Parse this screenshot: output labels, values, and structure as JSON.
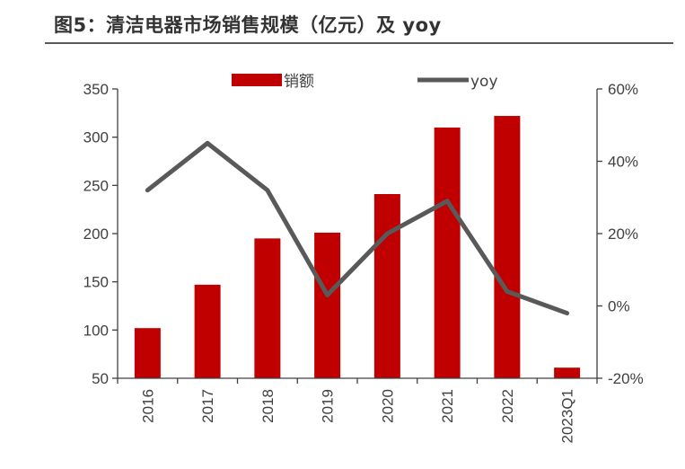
{
  "title": "图5：清洁电器市场销售规模（亿元）及 yoy",
  "colors": {
    "bar": "#c00000",
    "line": "#595959",
    "axis": "#404040"
  },
  "legend": {
    "bar_label": "销额",
    "line_label": "yoy"
  },
  "chart_data": {
    "type": "bar+line",
    "title": "图5：清洁电器市场销售规模（亿元）及 yoy",
    "categories": [
      "2016",
      "2017",
      "2018",
      "2019",
      "2020",
      "2021",
      "2022",
      "2023Q1"
    ],
    "series": [
      {
        "name": "销额",
        "type": "bar",
        "axis": "left",
        "values": [
          102,
          147,
          195,
          201,
          241,
          310,
          322,
          61
        ]
      },
      {
        "name": "yoy",
        "type": "line",
        "axis": "right",
        "values": [
          0.32,
          0.45,
          0.32,
          0.03,
          0.2,
          0.29,
          0.04,
          -0.02
        ]
      }
    ],
    "left_axis": {
      "ylim": [
        50,
        350
      ],
      "ticks": [
        "350",
        "300",
        "250",
        "200",
        "150",
        "100",
        "50"
      ]
    },
    "right_axis": {
      "ylim": [
        -0.2,
        0.6
      ],
      "ticks": [
        "60%",
        "40%",
        "20%",
        "0%",
        "-20%"
      ]
    },
    "legend_position": "top-center",
    "grid": false
  }
}
